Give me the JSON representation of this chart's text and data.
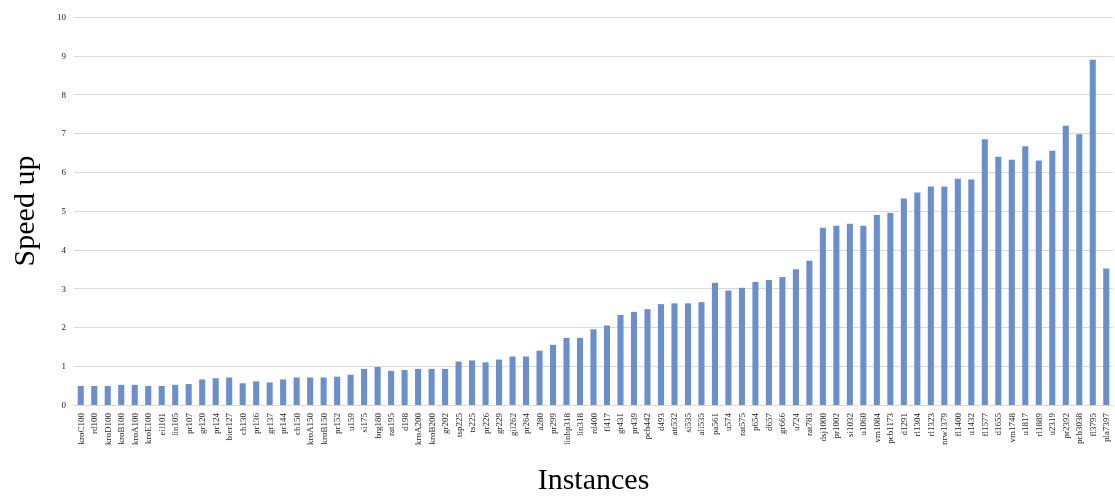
{
  "chart_data": {
    "type": "bar",
    "xlabel": "Instances",
    "ylabel": "Speed up",
    "categories": [
      "kroC100",
      "rd100",
      "kroD100",
      "kroB100",
      "kroA100",
      "kroE100",
      "eil101",
      "lin105",
      "pr107",
      "gr120",
      "pr124",
      "bier127",
      "ch130",
      "pr136",
      "gr137",
      "pr144",
      "ch150",
      "kroA150",
      "kroB150",
      "pr152",
      "u159",
      "si175",
      "brg180",
      "rat195",
      "d198",
      "kroA200",
      "kroB200",
      "gr202",
      "tsp225",
      "ts225",
      "pr226",
      "gr229",
      "gil262",
      "pr264",
      "a280",
      "pr299",
      "linhp318",
      "lin318",
      "rd400",
      "fl417",
      "gr431",
      "pr439",
      "pcb442",
      "d493",
      "att532",
      "si535",
      "ali535",
      "pa561",
      "u574",
      "rat575",
      "p654",
      "d657",
      "gr666",
      "u724",
      "rat783",
      "dsj1000",
      "pr1002",
      "si1032",
      "u1060",
      "vm1084",
      "pcb1173",
      "d1291",
      "rl1304",
      "rl1323",
      "nrw1379",
      "fl1400",
      "u1432",
      "fl1577",
      "d1655",
      "vm1748",
      "u1817",
      "rl1889",
      "u2319",
      "pr2392",
      "pcb3038",
      "fl3795",
      "pla7397"
    ],
    "values": [
      0.49,
      0.49,
      0.49,
      0.52,
      0.52,
      0.49,
      0.49,
      0.52,
      0.54,
      0.66,
      0.69,
      0.71,
      0.56,
      0.61,
      0.58,
      0.66,
      0.71,
      0.71,
      0.71,
      0.73,
      0.78,
      0.93,
      0.98,
      0.88,
      0.9,
      0.93,
      0.93,
      0.93,
      1.12,
      1.15,
      1.1,
      1.17,
      1.25,
      1.25,
      1.4,
      1.55,
      1.73,
      1.73,
      1.95,
      2.05,
      2.32,
      2.4,
      2.47,
      2.6,
      2.62,
      2.62,
      2.65,
      3.15,
      2.95,
      3.02,
      3.17,
      3.22,
      3.3,
      3.5,
      3.72,
      4.57,
      4.62,
      4.67,
      4.62,
      4.9,
      4.95,
      5.32,
      5.48,
      5.63,
      5.63,
      5.83,
      5.81,
      6.85,
      6.4,
      6.32,
      6.67,
      6.3,
      6.55,
      7.2,
      6.98,
      8.9,
      3.52
    ],
    "color": "#6a8fcf",
    "ylim": [
      0,
      10
    ],
    "yticks": [
      0,
      1,
      2,
      3,
      4,
      5,
      6,
      7,
      8,
      9,
      10
    ],
    "grid": "y"
  }
}
